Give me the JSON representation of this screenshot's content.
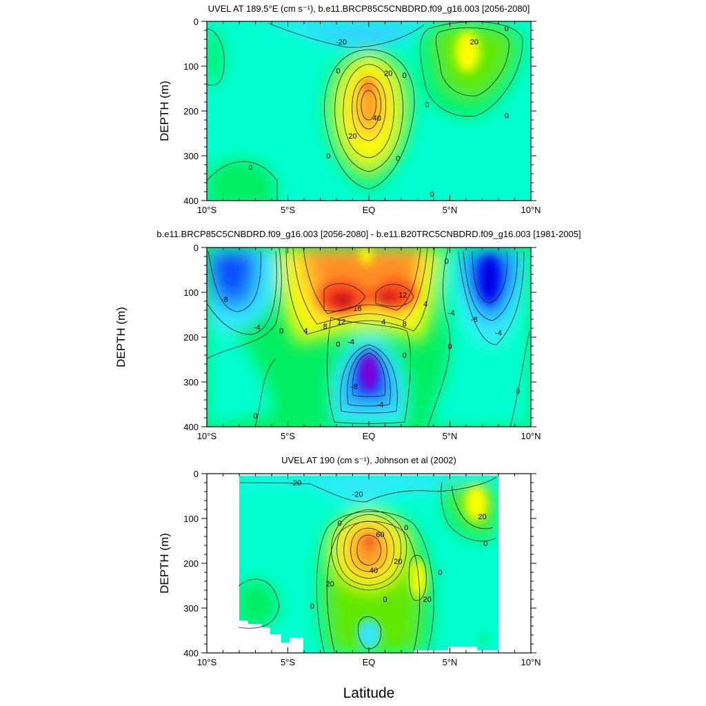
{
  "figure": {
    "xlabel": "Latitude"
  },
  "chart_data": [
    {
      "type": "contour",
      "title": "UVEL AT 189.5°E (cm s⁻¹), b.e11.BRCP85C5CNBDRD.f09_g16.003 [2056-2080]",
      "ylabel": "DEPTH (m)",
      "xlim": [
        -10,
        10
      ],
      "ylim": [
        400,
        0
      ],
      "x_ticks": [
        "10°S",
        "5°S",
        "EQ",
        "5°N",
        "10°N"
      ],
      "y_ticks": [
        "0",
        "100",
        "200",
        "300",
        "400"
      ],
      "contour_labels": [
        {
          "text": "-20",
          "lat": -1.7,
          "depth": 45
        },
        {
          "text": "20",
          "lat": 6.5,
          "depth": 45
        },
        {
          "text": "0",
          "lat": 8.5,
          "depth": 15
        },
        {
          "text": "0",
          "lat": -1.9,
          "depth": 110
        },
        {
          "text": "20",
          "lat": 1.2,
          "depth": 115
        },
        {
          "text": "0",
          "lat": 2.2,
          "depth": 120
        },
        {
          "text": "0",
          "lat": 3.6,
          "depth": 185
        },
        {
          "text": "40",
          "lat": 0.5,
          "depth": 215
        },
        {
          "text": "20",
          "lat": -1.0,
          "depth": 255
        },
        {
          "text": "0",
          "lat": 8.5,
          "depth": 210
        },
        {
          "text": "0",
          "lat": -2.5,
          "depth": 300
        },
        {
          "text": "0",
          "lat": 1.8,
          "depth": 305
        },
        {
          "text": "0",
          "lat": -7.3,
          "depth": 325
        },
        {
          "text": "0",
          "lat": 3.9,
          "depth": 385
        }
      ]
    },
    {
      "type": "contour",
      "title": "b.e11.BRCP85C5CNBDRD.f09_g16.003 [2056-2080] - b.e11.B20TRC5CNBDRD.f09_g16.003 [1981-2005]",
      "ylabel": "DEPTH (m)",
      "xlim": [
        -10,
        10
      ],
      "ylim": [
        400,
        0
      ],
      "x_ticks": [
        "10°S",
        "5°S",
        "EQ",
        "5°N",
        "10°N"
      ],
      "y_ticks": [
        "0",
        "100",
        "200",
        "300",
        "400"
      ],
      "contour_labels": [
        {
          "text": "-8",
          "lat": -8.9,
          "depth": 115
        },
        {
          "text": "0",
          "lat": 4.8,
          "depth": 30
        },
        {
          "text": "12",
          "lat": 2.1,
          "depth": 105
        },
        {
          "text": "4",
          "lat": 3.5,
          "depth": 125
        },
        {
          "text": "16",
          "lat": -0.7,
          "depth": 135
        },
        {
          "text": "12",
          "lat": -1.7,
          "depth": 165
        },
        {
          "text": "8",
          "lat": -2.7,
          "depth": 175
        },
        {
          "text": "4",
          "lat": 0.9,
          "depth": 165
        },
        {
          "text": "8",
          "lat": 2.2,
          "depth": 170
        },
        {
          "text": "4",
          "lat": -3.9,
          "depth": 185
        },
        {
          "text": "-4",
          "lat": -6.9,
          "depth": 178
        },
        {
          "text": "0",
          "lat": -5.4,
          "depth": 185
        },
        {
          "text": "-4",
          "lat": 5.1,
          "depth": 145
        },
        {
          "text": "-8",
          "lat": 6.5,
          "depth": 160
        },
        {
          "text": "-4",
          "lat": 8.0,
          "depth": 190
        },
        {
          "text": "0",
          "lat": -1.9,
          "depth": 215
        },
        {
          "text": "-4",
          "lat": -1.1,
          "depth": 210
        },
        {
          "text": "0",
          "lat": 5.0,
          "depth": 220
        },
        {
          "text": "0",
          "lat": 2.2,
          "depth": 240
        },
        {
          "text": "-8",
          "lat": -0.9,
          "depth": 310
        },
        {
          "text": "0",
          "lat": 9.2,
          "depth": 320
        },
        {
          "text": "-4",
          "lat": 0.7,
          "depth": 350
        },
        {
          "text": "0",
          "lat": -7.0,
          "depth": 375
        }
      ]
    },
    {
      "type": "contour",
      "title": "UVEL AT 190 (cm s⁻¹), Johnson et al (2002)",
      "ylabel": "DEPTH (m)",
      "xlim": [
        -10,
        10
      ],
      "ylim": [
        400,
        0
      ],
      "x_ticks": [
        "10°S",
        "5°S",
        "EQ",
        "5°N",
        "10°N"
      ],
      "y_ticks": [
        "0",
        "100",
        "200",
        "300",
        "400"
      ],
      "contour_labels": [
        {
          "text": "-20",
          "lat": -4.5,
          "depth": 20
        },
        {
          "text": "-20",
          "lat": -0.7,
          "depth": 45
        },
        {
          "text": "20",
          "lat": 7.0,
          "depth": 95
        },
        {
          "text": "0",
          "lat": -1.8,
          "depth": 110
        },
        {
          "text": "60",
          "lat": 0.7,
          "depth": 135
        },
        {
          "text": "0",
          "lat": 2.3,
          "depth": 120
        },
        {
          "text": "0",
          "lat": 7.2,
          "depth": 155
        },
        {
          "text": "20",
          "lat": 1.8,
          "depth": 195
        },
        {
          "text": "40",
          "lat": 0.3,
          "depth": 215
        },
        {
          "text": "0",
          "lat": 4.4,
          "depth": 220
        },
        {
          "text": "20",
          "lat": -2.4,
          "depth": 245
        },
        {
          "text": "0",
          "lat": 1.0,
          "depth": 280
        },
        {
          "text": "20",
          "lat": 3.6,
          "depth": 280
        },
        {
          "text": "0",
          "lat": -3.5,
          "depth": 295
        }
      ]
    }
  ],
  "colors": {
    "palette": [
      "#7a00d6",
      "#0000e6",
      "#0a46ff",
      "#1e90ff",
      "#35c8ff",
      "#38e6ff",
      "#00ffd0",
      "#00ee62",
      "#60e800",
      "#c4f51f",
      "#ffff00",
      "#ffd728",
      "#ffb030",
      "#ff8c28",
      "#ff5a1e",
      "#e61e1e",
      "#b4141e"
    ]
  }
}
